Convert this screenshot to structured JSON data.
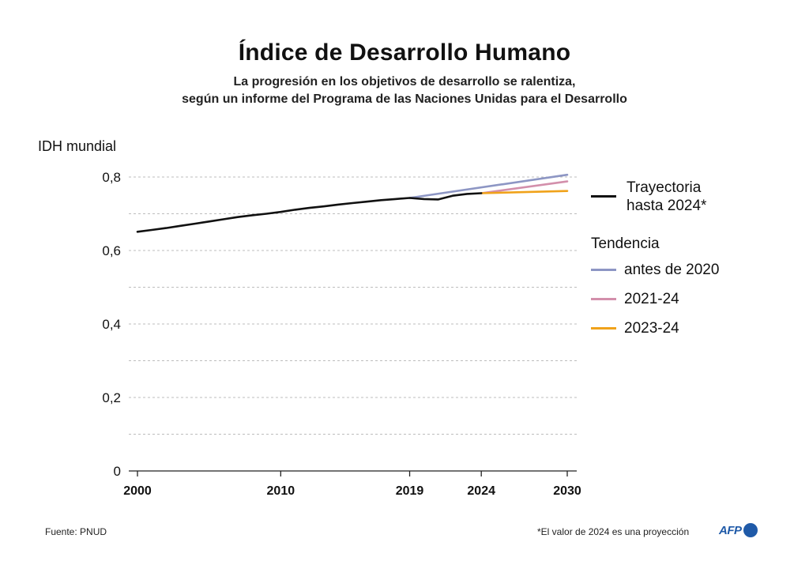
{
  "chart_data": {
    "type": "line",
    "title": "Índice de Desarrollo Humano",
    "subtitle": [
      "La progresión en los objetivos de desarrollo se ralentiza,",
      "según un informe del Programa de las Naciones Unidas para el Desarrollo"
    ],
    "ylabel": "IDH mundial",
    "ylim": [
      0,
      0.8
    ],
    "yticks": [
      0,
      0.2,
      0.4,
      0.6,
      0.8
    ],
    "ytick_labels": [
      "0",
      "0,2",
      "0,4",
      "0,6",
      "0,8"
    ],
    "xlim": [
      2000,
      2030
    ],
    "xticks": [
      2000,
      2010,
      2019,
      2024,
      2030
    ],
    "xtick_labels": [
      "2000",
      "2010",
      "2019",
      "2024",
      "2030"
    ],
    "grid": "horizontal dashed",
    "series": [
      {
        "name": "Trayectoria hasta 2024*",
        "color": "#111111",
        "x": [
          2000,
          2001,
          2002,
          2003,
          2004,
          2005,
          2006,
          2007,
          2008,
          2009,
          2010,
          2011,
          2012,
          2013,
          2014,
          2015,
          2016,
          2017,
          2018,
          2019,
          2020,
          2021,
          2022,
          2023,
          2024
        ],
        "y": [
          0.651,
          0.656,
          0.661,
          0.667,
          0.673,
          0.679,
          0.685,
          0.691,
          0.696,
          0.7,
          0.705,
          0.711,
          0.716,
          0.72,
          0.725,
          0.729,
          0.733,
          0.737,
          0.74,
          0.743,
          0.74,
          0.739,
          0.749,
          0.754,
          0.756
        ]
      },
      {
        "name": "antes de 2020",
        "color": "#8d96c4",
        "x": [
          2019,
          2030
        ],
        "y": [
          0.743,
          0.806
        ]
      },
      {
        "name": "2021-24",
        "color": "#d38fab",
        "x": [
          2024,
          2030
        ],
        "y": [
          0.756,
          0.788
        ]
      },
      {
        "name": "2023-24",
        "color": "#f0a21a",
        "x": [
          2024,
          2030
        ],
        "y": [
          0.756,
          0.762
        ]
      }
    ],
    "legend": {
      "placement": "right",
      "trajectory_label_line1": "Trayectoria",
      "trajectory_label_line2": "hasta 2024*",
      "group_title": "Tendencia",
      "items": [
        "antes de 2020",
        "2021-24",
        "2023-24"
      ]
    }
  },
  "footer": {
    "source": "Fuente: PNUD",
    "note": "*El valor de 2024 es una proyección",
    "logo": "AFP"
  }
}
